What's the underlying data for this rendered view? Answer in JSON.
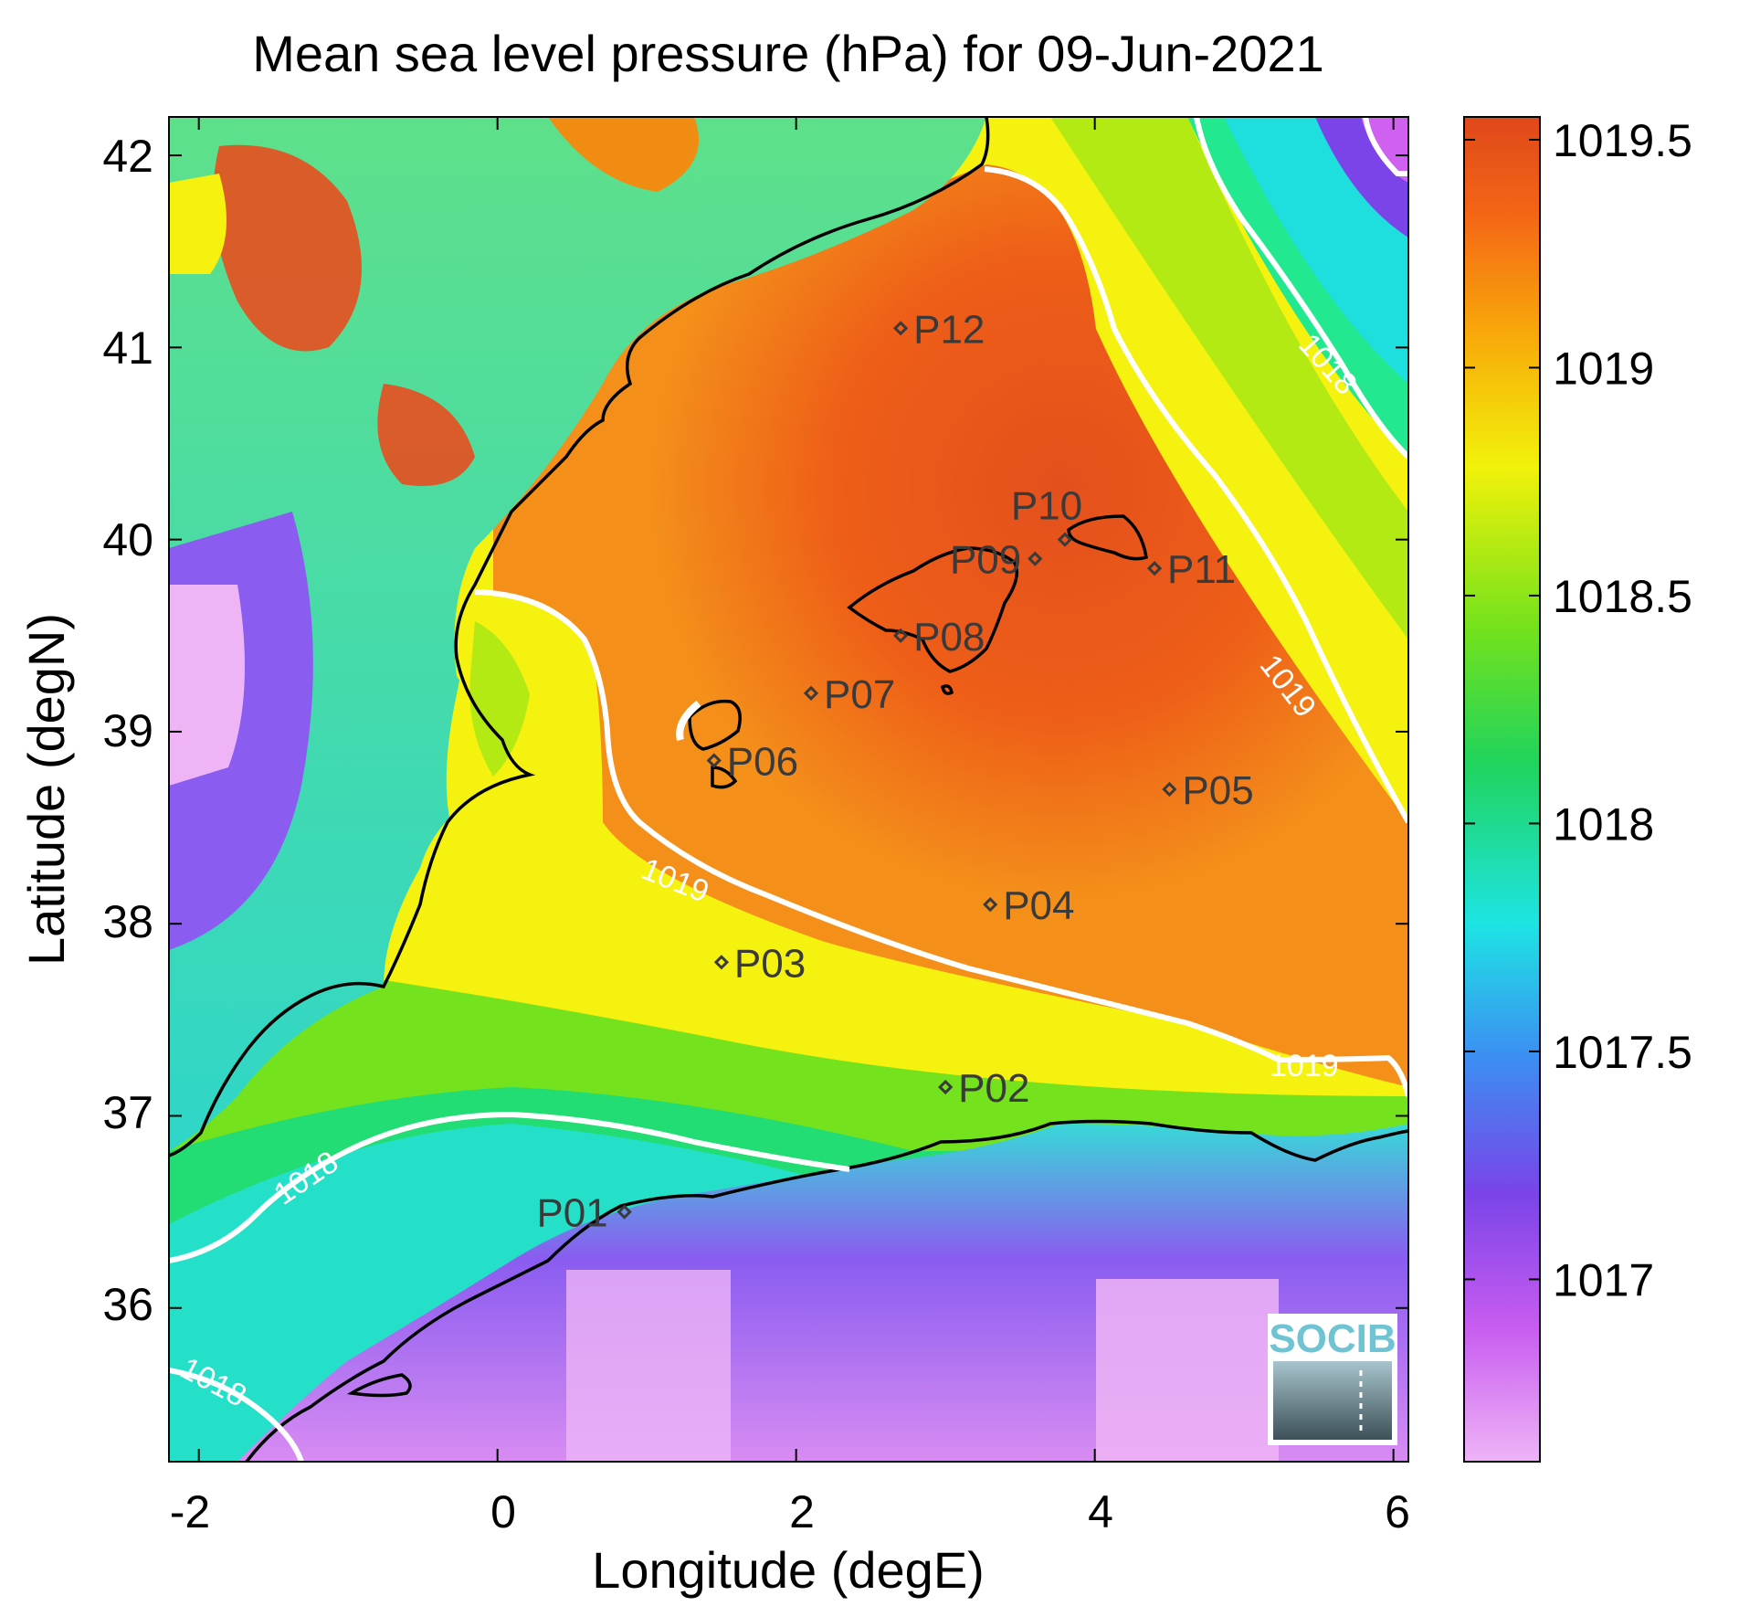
{
  "title": "Mean sea level pressure (hPa) for 09-Jun-2021",
  "x_axis": {
    "label": "Longitude (degE)",
    "ticks": [
      "-2",
      "0",
      "2",
      "4",
      "6"
    ],
    "range": [
      -2.2,
      6.1
    ]
  },
  "y_axis": {
    "label": "Latitude (degN)",
    "ticks": [
      "36",
      "37",
      "38",
      "39",
      "40",
      "41",
      "42"
    ],
    "range": [
      35.2,
      42.2
    ]
  },
  "colorbar": {
    "ticks": [
      "1017",
      "1017.5",
      "1018",
      "1018.5",
      "1019",
      "1019.5"
    ],
    "range": [
      1016.6,
      1019.55
    ],
    "colors": [
      "#eeb4f6",
      "#c85cf0",
      "#7a44e8",
      "#3c8ef2",
      "#1ee4e4",
      "#20d45c",
      "#74e21c",
      "#f2f20a",
      "#f8a80a",
      "#f46416",
      "#e0481a"
    ]
  },
  "contours": [
    {
      "label": "1019"
    },
    {
      "label": "1019"
    },
    {
      "label": "1019"
    },
    {
      "label": "1018"
    },
    {
      "label": "1018"
    },
    {
      "label": "1018"
    }
  ],
  "stations": [
    {
      "id": "P01",
      "lon": 0.85,
      "lat": 36.5
    },
    {
      "id": "P02",
      "lon": 3.0,
      "lat": 37.15
    },
    {
      "id": "P03",
      "lon": 1.5,
      "lat": 37.8
    },
    {
      "id": "P04",
      "lon": 3.3,
      "lat": 38.1
    },
    {
      "id": "P05",
      "lon": 4.5,
      "lat": 38.7
    },
    {
      "id": "P06",
      "lon": 1.45,
      "lat": 38.85
    },
    {
      "id": "P07",
      "lon": 2.1,
      "lat": 39.2
    },
    {
      "id": "P08",
      "lon": 2.7,
      "lat": 39.5
    },
    {
      "id": "P09",
      "lon": 3.6,
      "lat": 39.9
    },
    {
      "id": "P10",
      "lon": 3.8,
      "lat": 40.0
    },
    {
      "id": "P11",
      "lon": 4.4,
      "lat": 39.85
    },
    {
      "id": "P12",
      "lon": 2.7,
      "lat": 41.1
    }
  ],
  "logo": {
    "text": "SOCIB"
  }
}
